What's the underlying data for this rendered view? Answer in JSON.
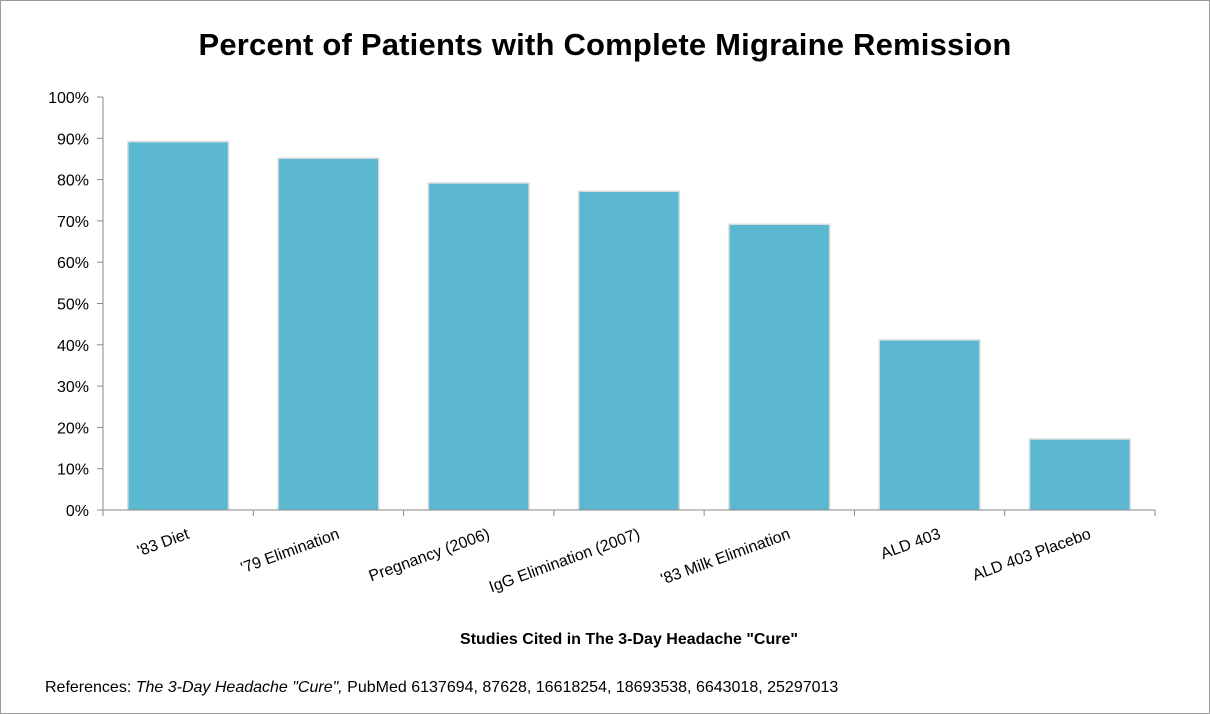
{
  "chart_data": {
    "type": "bar",
    "title": "Percent of Patients with Complete Migraine Remission",
    "xlabel": "Studies Cited in The 3-Day Headache \"Cure\"",
    "ylabel": "",
    "categories": [
      "'83 Diet",
      "'79 Elimination",
      "Pregnancy (2006)",
      "IgG Elimination (2007)",
      "'83 Milk Elimination",
      "ALD 403",
      "ALD 403 Placebo"
    ],
    "values": [
      89,
      85,
      79,
      77,
      69,
      41,
      17
    ],
    "ylim": [
      0,
      100
    ],
    "yticks": [
      0,
      10,
      20,
      30,
      40,
      50,
      60,
      70,
      80,
      90,
      100
    ],
    "ytick_labels": [
      "0%",
      "10%",
      "20%",
      "30%",
      "40%",
      "50%",
      "60%",
      "70%",
      "80%",
      "90%",
      "100%"
    ],
    "grid": false,
    "legend": "none",
    "bar_color": "#5bb8d0"
  },
  "references": {
    "prefix": "References: ",
    "book": "The 3-Day Headache \"Cure\",",
    "suffix": " PubMed 6137694, 87628, 16618254, 18693538, 6643018, 25297013"
  }
}
